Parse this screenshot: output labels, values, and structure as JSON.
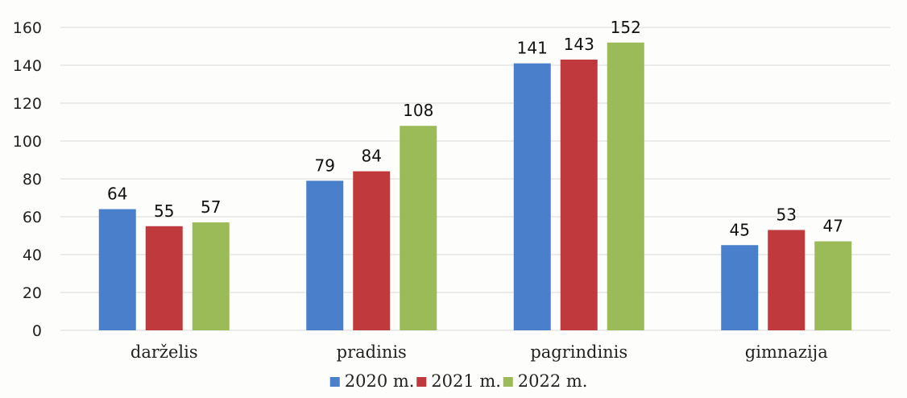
{
  "chart_data": {
    "type": "bar",
    "title": "",
    "xlabel": "",
    "ylabel": "",
    "categories": [
      "darželis",
      "pradinis",
      "pagrindinis",
      "gimnazija"
    ],
    "series": [
      {
        "name": "2020 m.",
        "color": "#4a7fcb",
        "values": [
          64,
          79,
          141,
          45
        ]
      },
      {
        "name": "2021 m.",
        "color": "#c0393d",
        "values": [
          55,
          84,
          143,
          53
        ]
      },
      {
        "name": "2022 m.",
        "color": "#9bbb59",
        "values": [
          57,
          108,
          152,
          47
        ]
      }
    ],
    "ylim": [
      0,
      160
    ],
    "yticks": [
      0,
      20,
      40,
      60,
      80,
      100,
      120,
      140,
      160
    ],
    "grid": true,
    "legend_position": "bottom"
  }
}
